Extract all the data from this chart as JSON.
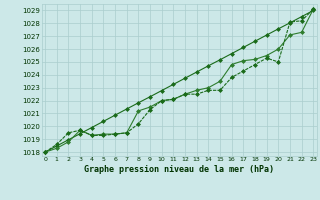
{
  "title": "Graphe pression niveau de la mer (hPa)",
  "hours": [
    0,
    1,
    2,
    3,
    4,
    5,
    6,
    7,
    8,
    9,
    10,
    11,
    12,
    13,
    14,
    15,
    16,
    17,
    18,
    19,
    20,
    21,
    22,
    23
  ],
  "ylim": [
    1017.7,
    1029.5
  ],
  "xlim": [
    -0.3,
    23.3
  ],
  "yticks": [
    1018,
    1019,
    1020,
    1021,
    1022,
    1023,
    1024,
    1025,
    1026,
    1027,
    1028,
    1029
  ],
  "line_smooth": [
    1018.0,
    1018.48,
    1018.96,
    1019.43,
    1019.91,
    1020.39,
    1020.87,
    1021.35,
    1021.83,
    1022.3,
    1022.78,
    1023.26,
    1023.74,
    1024.22,
    1024.7,
    1025.17,
    1025.65,
    1026.13,
    1026.61,
    1027.09,
    1027.57,
    1028.04,
    1028.52,
    1029.0
  ],
  "line_jagged": [
    1018.0,
    1018.6,
    1019.5,
    1019.7,
    1019.3,
    1019.3,
    1019.4,
    1019.5,
    1020.2,
    1021.3,
    1022.0,
    1022.1,
    1022.5,
    1022.5,
    1022.8,
    1022.8,
    1023.8,
    1024.3,
    1024.8,
    1025.3,
    1025.0,
    1028.1,
    1028.2,
    1029.1
  ],
  "line_mid": [
    1018.0,
    1018.3,
    1018.8,
    1019.7,
    1019.3,
    1019.4,
    1019.4,
    1019.5,
    1021.2,
    1021.5,
    1022.0,
    1022.1,
    1022.5,
    1022.8,
    1023.0,
    1023.5,
    1024.8,
    1025.1,
    1025.2,
    1025.5,
    1026.0,
    1027.1,
    1027.3,
    1029.1
  ],
  "line_color_dark": "#1a6b1a",
  "line_color_mid": "#2e7d2e",
  "bg_color": "#cce8e8",
  "grid_color": "#aacece",
  "title_color": "#003300"
}
